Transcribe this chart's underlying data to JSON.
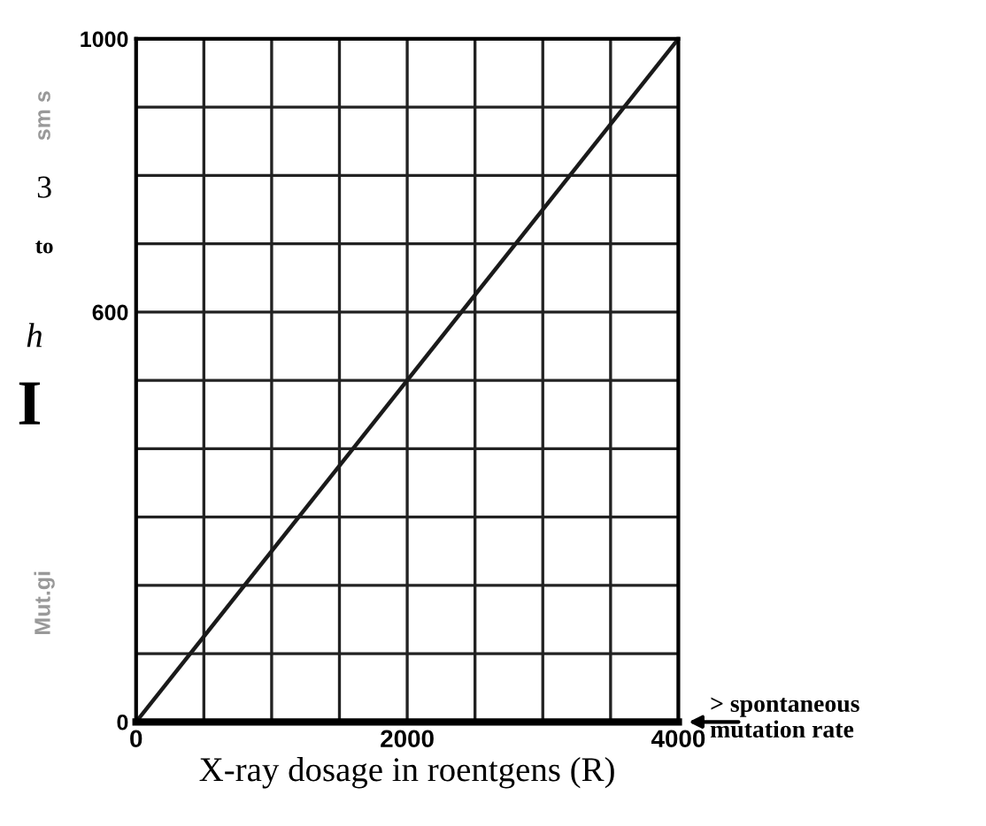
{
  "chart_data": {
    "type": "line",
    "x": [
      0,
      4000
    ],
    "series": [
      {
        "color": "#1a1a1a",
        "values": [
          0,
          1000
        ]
      }
    ],
    "xlabel": "X-ray dosage in roentgens (R)",
    "xlim": [
      0,
      4000
    ],
    "xticks": [
      0,
      {
        "value": 500,
        "label": null
      },
      {
        "value": 1000,
        "label": null
      },
      {
        "value": 1500,
        "label": null
      },
      2000,
      {
        "value": 2500,
        "label": null
      },
      {
        "value": 3000,
        "label": null
      },
      {
        "value": 3500,
        "label": null
      },
      4000
    ],
    "ylim": [
      0,
      1000
    ],
    "yticks": [
      0,
      {
        "value": 100,
        "label": null
      },
      {
        "value": 200,
        "label": null
      },
      {
        "value": 300,
        "label": null
      },
      {
        "value": 400,
        "label": null
      },
      {
        "value": 500,
        "label": null
      },
      600,
      {
        "value": 700,
        "label": null
      },
      {
        "value": 800,
        "label": null
      },
      {
        "value": 900,
        "label": null
      },
      1000
    ],
    "grid": true,
    "annotations": [
      "> spontaneous\nmutation rate",
      "sm s",
      "3",
      "to",
      "h",
      "I",
      "Mut.gi"
    ]
  }
}
